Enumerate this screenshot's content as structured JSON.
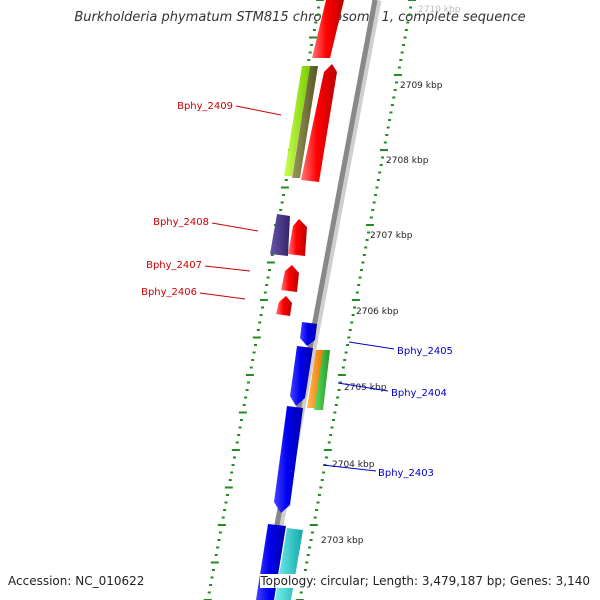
{
  "title": "Burkholderia phymatum STM815 chromosome 1, complete sequence",
  "footer": {
    "accession": "Accession: NC_010622",
    "topology": "Topology: circular; Length: 3,479,187 bp; Genes: 3,140"
  },
  "ruler_labels": [
    "2710 kbp",
    "2709 kbp",
    "2708 kbp",
    "2707 kbp",
    "2706 kbp",
    "2705 kbp",
    "2704 kbp",
    "2703 kbp"
  ],
  "genes": [
    {
      "name": "Bphy_2409",
      "color": "#cc0000"
    },
    {
      "name": "Bphy_2408",
      "color": "#cc0000"
    },
    {
      "name": "Bphy_2407",
      "color": "#cc0000"
    },
    {
      "name": "Bphy_2406",
      "color": "#cc0000"
    },
    {
      "name": "Bphy_2405",
      "color": "#0000cc"
    },
    {
      "name": "Bphy_2404",
      "color": "#0000cc"
    },
    {
      "name": "Bphy_2403",
      "color": "#0000cc"
    }
  ],
  "colors": {
    "backbone": "#888888",
    "ticks": "#228b22",
    "forward_strand": "#ff0000",
    "reverse_strand": "#0000ee",
    "lime": "#99ee11",
    "olive": "#777733",
    "navy": "#443388",
    "orange": "#ff8800",
    "green": "#33bb33",
    "cyan": "#22cccc"
  }
}
